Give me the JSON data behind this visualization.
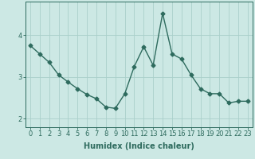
{
  "x": [
    0,
    1,
    2,
    3,
    4,
    5,
    6,
    7,
    8,
    9,
    10,
    11,
    12,
    13,
    14,
    15,
    16,
    17,
    18,
    19,
    20,
    21,
    22,
    23
  ],
  "y": [
    3.75,
    3.55,
    3.35,
    3.05,
    2.88,
    2.72,
    2.58,
    2.48,
    2.28,
    2.25,
    2.6,
    3.25,
    3.72,
    3.28,
    4.52,
    3.55,
    3.43,
    3.05,
    2.72,
    2.6,
    2.6,
    2.38,
    2.42,
    2.42
  ],
  "line_color": "#2e6b5e",
  "marker": "D",
  "markersize": 2.5,
  "linewidth": 1.0,
  "bg_color": "#cce8e4",
  "grid_color": "#aacfca",
  "xlabel": "Humidex (Indice chaleur)",
  "ylim": [
    1.8,
    4.8
  ],
  "xlim": [
    -0.5,
    23.5
  ],
  "yticks": [
    2,
    3,
    4
  ],
  "xticks": [
    0,
    1,
    2,
    3,
    4,
    5,
    6,
    7,
    8,
    9,
    10,
    11,
    12,
    13,
    14,
    15,
    16,
    17,
    18,
    19,
    20,
    21,
    22,
    23
  ],
  "xlabel_fontsize": 7.0,
  "tick_fontsize": 6.0
}
